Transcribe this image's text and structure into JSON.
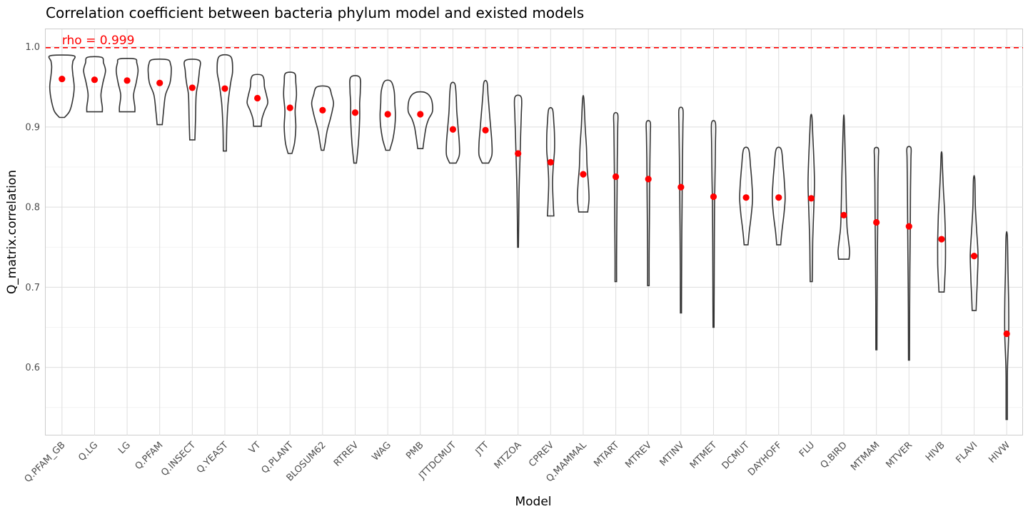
{
  "chart_data": {
    "type": "violin",
    "title": "Correlation coefficient between bacteria phylum model and existed models",
    "xlabel": "Model",
    "ylabel": "Q_matrix.correlation",
    "ylim": [
      0.515,
      1.022
    ],
    "yticks": [
      0.6,
      0.7,
      0.8,
      0.9,
      1.0
    ],
    "ytick_labels": [
      "0.6",
      "0.7",
      "0.8",
      "0.9",
      "1.0"
    ],
    "grid": true,
    "reference_line": {
      "value": 0.999,
      "label": "rho = 0.999",
      "color": "#ff0000",
      "style": "dashed"
    },
    "mean_color": "#ff0000",
    "categories": [
      "Q.PFAM_GB",
      "Q.LG",
      "LG",
      "Q.PFAM",
      "Q.INSECT",
      "Q.YEAST",
      "VT",
      "Q.PLANT",
      "BLOSUM62",
      "RTREV",
      "WAG",
      "PMB",
      "JTTDCMUT",
      "JTT",
      "MTZOA",
      "CPREV",
      "Q.MAMMAL",
      "MTART",
      "MTREV",
      "MTINV",
      "MTMET",
      "DCMUT",
      "DAYHOFF",
      "FLU",
      "Q.BIRD",
      "MTMAM",
      "MTVER",
      "HIVB",
      "FLAVI",
      "HIVW"
    ],
    "series": [
      {
        "model": "Q.PFAM_GB",
        "min": 0.912,
        "max": 0.989,
        "mean": 0.96,
        "density": [
          [
            0.912,
            0.2
          ],
          [
            0.92,
            0.6
          ],
          [
            0.935,
            0.85
          ],
          [
            0.95,
            0.95
          ],
          [
            0.965,
            0.85
          ],
          [
            0.975,
            0.8
          ],
          [
            0.982,
            0.85
          ],
          [
            0.989,
            0.9
          ]
        ]
      },
      {
        "model": "Q.LG",
        "min": 0.919,
        "max": 0.987,
        "mean": 0.959,
        "density": [
          [
            0.919,
            0.6
          ],
          [
            0.925,
            0.6
          ],
          [
            0.94,
            0.5
          ],
          [
            0.955,
            0.65
          ],
          [
            0.97,
            0.85
          ],
          [
            0.98,
            0.7
          ],
          [
            0.987,
            0.55
          ]
        ]
      },
      {
        "model": "LG",
        "min": 0.919,
        "max": 0.985,
        "mean": 0.958,
        "density": [
          [
            0.919,
            0.6
          ],
          [
            0.925,
            0.6
          ],
          [
            0.94,
            0.5
          ],
          [
            0.955,
            0.7
          ],
          [
            0.97,
            0.85
          ],
          [
            0.98,
            0.75
          ],
          [
            0.985,
            0.6
          ]
        ]
      },
      {
        "model": "Q.PFAM",
        "min": 0.903,
        "max": 0.984,
        "mean": 0.955,
        "density": [
          [
            0.903,
            0.2
          ],
          [
            0.92,
            0.3
          ],
          [
            0.94,
            0.45
          ],
          [
            0.955,
            0.8
          ],
          [
            0.97,
            0.9
          ],
          [
            0.978,
            0.85
          ],
          [
            0.984,
            0.6
          ]
        ]
      },
      {
        "model": "Q.INSECT",
        "min": 0.884,
        "max": 0.983,
        "mean": 0.949,
        "density": [
          [
            0.884,
            0.2
          ],
          [
            0.91,
            0.25
          ],
          [
            0.94,
            0.3
          ],
          [
            0.955,
            0.45
          ],
          [
            0.97,
            0.55
          ],
          [
            0.983,
            0.55
          ]
        ]
      },
      {
        "model": "Q.YEAST",
        "min": 0.87,
        "max": 0.988,
        "mean": 0.948,
        "density": [
          [
            0.87,
            0.12
          ],
          [
            0.9,
            0.15
          ],
          [
            0.93,
            0.25
          ],
          [
            0.955,
            0.45
          ],
          [
            0.97,
            0.6
          ],
          [
            0.988,
            0.45
          ]
        ]
      },
      {
        "model": "VT",
        "min": 0.901,
        "max": 0.965,
        "mean": 0.936,
        "density": [
          [
            0.901,
            0.3
          ],
          [
            0.91,
            0.35
          ],
          [
            0.92,
            0.55
          ],
          [
            0.93,
            0.8
          ],
          [
            0.94,
            0.7
          ],
          [
            0.95,
            0.55
          ],
          [
            0.96,
            0.5
          ],
          [
            0.965,
            0.3
          ]
        ]
      },
      {
        "model": "Q.PLANT",
        "min": 0.867,
        "max": 0.967,
        "mean": 0.924,
        "density": [
          [
            0.867,
            0.15
          ],
          [
            0.88,
            0.35
          ],
          [
            0.9,
            0.45
          ],
          [
            0.92,
            0.4
          ],
          [
            0.94,
            0.5
          ],
          [
            0.955,
            0.45
          ],
          [
            0.967,
            0.35
          ]
        ]
      },
      {
        "model": "BLOSUM62",
        "min": 0.871,
        "max": 0.95,
        "mean": 0.921,
        "density": [
          [
            0.871,
            0.1
          ],
          [
            0.88,
            0.2
          ],
          [
            0.895,
            0.35
          ],
          [
            0.91,
            0.6
          ],
          [
            0.92,
            0.75
          ],
          [
            0.93,
            0.85
          ],
          [
            0.94,
            0.7
          ],
          [
            0.95,
            0.45
          ]
        ]
      },
      {
        "model": "RTREV",
        "min": 0.855,
        "max": 0.962,
        "mean": 0.918,
        "density": [
          [
            0.855,
            0.1
          ],
          [
            0.88,
            0.25
          ],
          [
            0.91,
            0.35
          ],
          [
            0.93,
            0.35
          ],
          [
            0.945,
            0.4
          ],
          [
            0.962,
            0.35
          ]
        ]
      },
      {
        "model": "WAG",
        "min": 0.871,
        "max": 0.957,
        "mean": 0.916,
        "density": [
          [
            0.871,
            0.15
          ],
          [
            0.885,
            0.4
          ],
          [
            0.9,
            0.55
          ],
          [
            0.915,
            0.6
          ],
          [
            0.93,
            0.55
          ],
          [
            0.945,
            0.5
          ],
          [
            0.957,
            0.25
          ]
        ]
      },
      {
        "model": "PMB",
        "min": 0.873,
        "max": 0.943,
        "mean": 0.916,
        "density": [
          [
            0.873,
            0.2
          ],
          [
            0.885,
            0.3
          ],
          [
            0.9,
            0.45
          ],
          [
            0.91,
            0.65
          ],
          [
            0.92,
            0.95
          ],
          [
            0.935,
            0.85
          ],
          [
            0.943,
            0.4
          ]
        ]
      },
      {
        "model": "JTTDCMUT",
        "min": 0.855,
        "max": 0.954,
        "mean": 0.897,
        "density": [
          [
            0.855,
            0.25
          ],
          [
            0.865,
            0.5
          ],
          [
            0.88,
            0.5
          ],
          [
            0.9,
            0.4
          ],
          [
            0.92,
            0.3
          ],
          [
            0.94,
            0.25
          ],
          [
            0.954,
            0.15
          ]
        ]
      },
      {
        "model": "JTT",
        "min": 0.855,
        "max": 0.956,
        "mean": 0.896,
        "density": [
          [
            0.855,
            0.25
          ],
          [
            0.865,
            0.5
          ],
          [
            0.88,
            0.5
          ],
          [
            0.9,
            0.4
          ],
          [
            0.92,
            0.3
          ],
          [
            0.94,
            0.2
          ],
          [
            0.956,
            0.12
          ]
        ]
      },
      {
        "model": "MTZOA",
        "min": 0.75,
        "max": 0.937,
        "mean": 0.867,
        "density": [
          [
            0.75,
            0.03
          ],
          [
            0.78,
            0.05
          ],
          [
            0.82,
            0.08
          ],
          [
            0.86,
            0.15
          ],
          [
            0.89,
            0.2
          ],
          [
            0.915,
            0.25
          ],
          [
            0.937,
            0.25
          ]
        ]
      },
      {
        "model": "CPREV",
        "min": 0.789,
        "max": 0.922,
        "mean": 0.856,
        "density": [
          [
            0.789,
            0.25
          ],
          [
            0.805,
            0.2
          ],
          [
            0.83,
            0.15
          ],
          [
            0.85,
            0.2
          ],
          [
            0.87,
            0.3
          ],
          [
            0.89,
            0.3
          ],
          [
            0.905,
            0.25
          ],
          [
            0.922,
            0.15
          ]
        ]
      },
      {
        "model": "Q.MAMMAL",
        "min": 0.794,
        "max": 0.935,
        "mean": 0.841,
        "density": [
          [
            0.794,
            0.35
          ],
          [
            0.81,
            0.45
          ],
          [
            0.83,
            0.4
          ],
          [
            0.85,
            0.3
          ],
          [
            0.875,
            0.25
          ],
          [
            0.9,
            0.15
          ],
          [
            0.935,
            0.05
          ]
        ]
      },
      {
        "model": "MTART",
        "min": 0.707,
        "max": 0.916,
        "mean": 0.838,
        "density": [
          [
            0.707,
            0.06
          ],
          [
            0.74,
            0.06
          ],
          [
            0.78,
            0.08
          ],
          [
            0.82,
            0.1
          ],
          [
            0.86,
            0.12
          ],
          [
            0.9,
            0.15
          ],
          [
            0.916,
            0.15
          ]
        ]
      },
      {
        "model": "MTREV",
        "min": 0.702,
        "max": 0.906,
        "mean": 0.835,
        "density": [
          [
            0.702,
            0.06
          ],
          [
            0.74,
            0.06
          ],
          [
            0.78,
            0.08
          ],
          [
            0.82,
            0.1
          ],
          [
            0.86,
            0.12
          ],
          [
            0.89,
            0.15
          ],
          [
            0.906,
            0.15
          ]
        ]
      },
      {
        "model": "MTINV",
        "min": 0.668,
        "max": 0.922,
        "mean": 0.825,
        "density": [
          [
            0.668,
            0.04
          ],
          [
            0.72,
            0.05
          ],
          [
            0.77,
            0.07
          ],
          [
            0.82,
            0.1
          ],
          [
            0.86,
            0.12
          ],
          [
            0.9,
            0.15
          ],
          [
            0.922,
            0.15
          ]
        ]
      },
      {
        "model": "MTMET",
        "min": 0.65,
        "max": 0.905,
        "mean": 0.813,
        "density": [
          [
            0.65,
            0.04
          ],
          [
            0.7,
            0.05
          ],
          [
            0.75,
            0.06
          ],
          [
            0.8,
            0.08
          ],
          [
            0.84,
            0.12
          ],
          [
            0.88,
            0.15
          ],
          [
            0.905,
            0.15
          ]
        ]
      },
      {
        "model": "DCMUT",
        "min": 0.753,
        "max": 0.872,
        "mean": 0.812,
        "density": [
          [
            0.753,
            0.15
          ],
          [
            0.77,
            0.25
          ],
          [
            0.79,
            0.4
          ],
          [
            0.81,
            0.5
          ],
          [
            0.83,
            0.45
          ],
          [
            0.85,
            0.35
          ],
          [
            0.872,
            0.2
          ]
        ]
      },
      {
        "model": "DAYHOFF",
        "min": 0.753,
        "max": 0.872,
        "mean": 0.812,
        "density": [
          [
            0.753,
            0.15
          ],
          [
            0.77,
            0.25
          ],
          [
            0.79,
            0.4
          ],
          [
            0.81,
            0.5
          ],
          [
            0.83,
            0.45
          ],
          [
            0.85,
            0.35
          ],
          [
            0.872,
            0.2
          ]
        ]
      },
      {
        "model": "FLU",
        "min": 0.707,
        "max": 0.913,
        "mean": 0.811,
        "density": [
          [
            0.707,
            0.08
          ],
          [
            0.73,
            0.1
          ],
          [
            0.76,
            0.12
          ],
          [
            0.8,
            0.2
          ],
          [
            0.83,
            0.25
          ],
          [
            0.86,
            0.2
          ],
          [
            0.89,
            0.12
          ],
          [
            0.913,
            0.05
          ]
        ]
      },
      {
        "model": "Q.BIRD",
        "min": 0.735,
        "max": 0.91,
        "mean": 0.79,
        "density": [
          [
            0.735,
            0.4
          ],
          [
            0.745,
            0.45
          ],
          [
            0.76,
            0.35
          ],
          [
            0.775,
            0.25
          ],
          [
            0.8,
            0.2
          ],
          [
            0.84,
            0.15
          ],
          [
            0.87,
            0.1
          ],
          [
            0.91,
            0.03
          ]
        ]
      },
      {
        "model": "MTMAM",
        "min": 0.622,
        "max": 0.873,
        "mean": 0.781,
        "density": [
          [
            0.622,
            0.04
          ],
          [
            0.68,
            0.05
          ],
          [
            0.73,
            0.07
          ],
          [
            0.78,
            0.1
          ],
          [
            0.83,
            0.12
          ],
          [
            0.86,
            0.15
          ],
          [
            0.873,
            0.15
          ]
        ]
      },
      {
        "model": "MTVER",
        "min": 0.609,
        "max": 0.874,
        "mean": 0.776,
        "density": [
          [
            0.609,
            0.04
          ],
          [
            0.67,
            0.05
          ],
          [
            0.72,
            0.07
          ],
          [
            0.77,
            0.1
          ],
          [
            0.82,
            0.12
          ],
          [
            0.86,
            0.15
          ],
          [
            0.874,
            0.15
          ]
        ]
      },
      {
        "model": "HIVB",
        "min": 0.694,
        "max": 0.867,
        "mean": 0.76,
        "density": [
          [
            0.694,
            0.2
          ],
          [
            0.71,
            0.25
          ],
          [
            0.73,
            0.3
          ],
          [
            0.76,
            0.3
          ],
          [
            0.79,
            0.25
          ],
          [
            0.82,
            0.15
          ],
          [
            0.85,
            0.07
          ],
          [
            0.867,
            0.03
          ]
        ]
      },
      {
        "model": "FLAVI",
        "min": 0.671,
        "max": 0.835,
        "mean": 0.739,
        "density": [
          [
            0.671,
            0.15
          ],
          [
            0.69,
            0.2
          ],
          [
            0.71,
            0.25
          ],
          [
            0.74,
            0.3
          ],
          [
            0.77,
            0.2
          ],
          [
            0.8,
            0.1
          ],
          [
            0.835,
            0.05
          ]
        ]
      },
      {
        "model": "HIVW",
        "min": 0.535,
        "max": 0.764,
        "mean": 0.642,
        "density": [
          [
            0.535,
            0.05
          ],
          [
            0.57,
            0.05
          ],
          [
            0.6,
            0.06
          ],
          [
            0.64,
            0.15
          ],
          [
            0.68,
            0.15
          ],
          [
            0.72,
            0.1
          ],
          [
            0.764,
            0.05
          ]
        ]
      }
    ]
  }
}
